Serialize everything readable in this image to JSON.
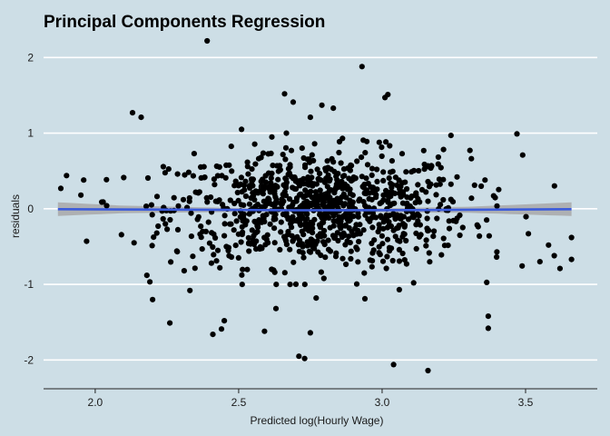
{
  "chart_data": {
    "type": "scatter",
    "title": "Principal Components Regression",
    "xlabel": "Predicted log(Hourly Wage)",
    "ylabel": "residuals",
    "xlim": [
      1.82,
      3.75
    ],
    "ylim": [
      -2.38,
      2.28
    ],
    "x_ticks": [
      2.0,
      2.5,
      3.0,
      3.5
    ],
    "y_ticks": [
      -2,
      -1,
      0,
      1,
      2
    ],
    "x_tick_labels": [
      "2.0",
      "2.5",
      "3.0",
      "3.5"
    ],
    "y_tick_labels": [
      "-2",
      "-1",
      "0",
      "1",
      "2"
    ],
    "grid": "horizontal",
    "background_color": "#cddee6",
    "point_color": "#000000",
    "trend_line_color": "#3b5bdb",
    "confidence_band_color": "#a8a8a8",
    "n_points": 1000,
    "trend_line": [
      [
        1.87,
        -0.005
      ],
      [
        2.3,
        -0.012
      ],
      [
        2.7,
        -0.02
      ],
      [
        3.1,
        -0.018
      ],
      [
        3.66,
        -0.005
      ]
    ],
    "confidence_band_width": [
      [
        1.87,
        0.09
      ],
      [
        2.1,
        0.05
      ],
      [
        2.5,
        0.025
      ],
      [
        2.9,
        0.022
      ],
      [
        3.3,
        0.04
      ],
      [
        3.66,
        0.09
      ]
    ],
    "notable_points": [
      [
        1.88,
        0.27
      ],
      [
        1.96,
        0.38
      ],
      [
        1.95,
        0.18
      ],
      [
        1.97,
        -0.43
      ],
      [
        2.04,
        0.04
      ],
      [
        2.13,
        1.27
      ],
      [
        2.16,
        1.21
      ],
      [
        2.18,
        -0.88
      ],
      [
        2.2,
        -1.2
      ],
      [
        2.26,
        -1.51
      ],
      [
        2.31,
        -0.82
      ],
      [
        2.33,
        -1.08
      ],
      [
        2.39,
        2.22
      ],
      [
        2.41,
        -1.66
      ],
      [
        2.44,
        -1.59
      ],
      [
        2.45,
        -1.48
      ],
      [
        2.51,
        1.05
      ],
      [
        2.59,
        -1.62
      ],
      [
        2.63,
        -1.32
      ],
      [
        2.66,
        1.52
      ],
      [
        2.69,
        1.41
      ],
      [
        2.71,
        -1.95
      ],
      [
        2.73,
        -1.98
      ],
      [
        2.75,
        -1.64
      ],
      [
        2.75,
        1.21
      ],
      [
        2.77,
        -1.18
      ],
      [
        2.79,
        1.37
      ],
      [
        2.83,
        1.33
      ],
      [
        2.93,
        1.88
      ],
      [
        2.94,
        -1.19
      ],
      [
        3.01,
        1.47
      ],
      [
        3.02,
        1.51
      ],
      [
        3.04,
        -2.06
      ],
      [
        3.06,
        -1.07
      ],
      [
        3.11,
        -0.98
      ],
      [
        3.16,
        -2.14
      ],
      [
        3.24,
        0.97
      ],
      [
        3.37,
        -1.42
      ],
      [
        3.37,
        -1.58
      ],
      [
        3.4,
        -0.57
      ],
      [
        3.47,
        0.99
      ],
      [
        3.49,
        0.71
      ],
      [
        3.51,
        -0.33
      ],
      [
        3.55,
        -0.7
      ],
      [
        3.58,
        -0.48
      ],
      [
        3.6,
        -0.62
      ],
      [
        3.62,
        -0.79
      ],
      [
        3.66,
        -0.38
      ],
      [
        3.66,
        -0.67
      ]
    ]
  }
}
